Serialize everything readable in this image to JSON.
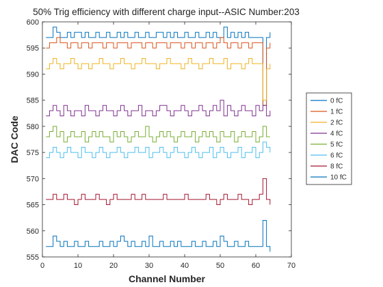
{
  "chart_data": {
    "type": "line",
    "step": true,
    "title": "50% Trig efficiency with different charge input--ASIC Number:203",
    "xlabel": "Channel Number",
    "ylabel": "DAC Code",
    "xlim": [
      0,
      70
    ],
    "ylim": [
      555,
      600
    ],
    "xticks": [
      0,
      10,
      20,
      30,
      40,
      50,
      60,
      70
    ],
    "yticks": [
      555,
      560,
      565,
      570,
      575,
      580,
      585,
      590,
      595,
      600
    ],
    "grid": false,
    "legend_position": "outside-right",
    "series": [
      {
        "name": "0 fC",
        "color": "#0072BD",
        "x": [
          1,
          2,
          3,
          4,
          5,
          6,
          7,
          8,
          9,
          10,
          11,
          12,
          13,
          14,
          15,
          16,
          17,
          18,
          19,
          20,
          21,
          22,
          23,
          24,
          25,
          26,
          27,
          28,
          29,
          30,
          31,
          32,
          33,
          34,
          35,
          36,
          37,
          38,
          39,
          40,
          41,
          42,
          43,
          44,
          45,
          46,
          47,
          48,
          49,
          50,
          51,
          52,
          53,
          54,
          55,
          56,
          57,
          58,
          59,
          60,
          61,
          62,
          63,
          64
        ],
        "y": [
          597,
          597,
          599,
          598,
          597,
          597,
          598,
          597,
          598,
          598,
          597,
          598,
          597,
          597,
          598,
          597,
          597,
          598,
          597,
          597,
          598,
          597,
          598,
          597,
          597,
          598,
          597,
          597,
          598,
          597,
          597,
          598,
          598,
          597,
          598,
          597,
          598,
          597,
          597,
          598,
          597,
          597,
          598,
          597,
          597,
          598,
          597,
          598,
          597,
          597,
          599,
          597,
          598,
          597,
          598,
          597,
          598,
          597,
          597,
          597,
          597,
          584,
          597,
          598
        ]
      },
      {
        "name": "1 fC",
        "color": "#D95319",
        "x": [
          1,
          2,
          3,
          4,
          5,
          6,
          7,
          8,
          9,
          10,
          11,
          12,
          13,
          14,
          15,
          16,
          17,
          18,
          19,
          20,
          21,
          22,
          23,
          24,
          25,
          26,
          27,
          28,
          29,
          30,
          31,
          32,
          33,
          34,
          35,
          36,
          37,
          38,
          39,
          40,
          41,
          42,
          43,
          44,
          45,
          46,
          47,
          48,
          49,
          50,
          51,
          52,
          53,
          54,
          55,
          56,
          57,
          58,
          59,
          60,
          61,
          62,
          63,
          64
        ],
        "y": [
          595,
          596,
          596,
          597,
          596,
          596,
          595,
          596,
          596,
          595,
          596,
          596,
          595,
          596,
          596,
          596,
          595,
          596,
          596,
          595,
          596,
          596,
          596,
          595,
          596,
          596,
          596,
          595,
          596,
          596,
          595,
          596,
          596,
          596,
          595,
          596,
          596,
          596,
          595,
          596,
          596,
          595,
          596,
          596,
          595,
          596,
          596,
          595,
          596,
          597,
          596,
          595,
          596,
          596,
          595,
          596,
          596,
          595,
          596,
          596,
          596,
          584,
          595,
          596
        ]
      },
      {
        "name": "2 fC",
        "color": "#EDB120",
        "x": [
          1,
          2,
          3,
          4,
          5,
          6,
          7,
          8,
          9,
          10,
          11,
          12,
          13,
          14,
          15,
          16,
          17,
          18,
          19,
          20,
          21,
          22,
          23,
          24,
          25,
          26,
          27,
          28,
          29,
          30,
          31,
          32,
          33,
          34,
          35,
          36,
          37,
          38,
          39,
          40,
          41,
          42,
          43,
          44,
          45,
          46,
          47,
          48,
          49,
          50,
          51,
          52,
          53,
          54,
          55,
          56,
          57,
          58,
          59,
          60,
          61,
          62,
          63,
          64
        ],
        "y": [
          591,
          592,
          593,
          592,
          591,
          592,
          592,
          593,
          592,
          591,
          592,
          592,
          591,
          592,
          592,
          593,
          592,
          592,
          591,
          592,
          592,
          593,
          592,
          592,
          591,
          592,
          592,
          593,
          592,
          592,
          592,
          591,
          592,
          592,
          593,
          592,
          592,
          592,
          591,
          592,
          593,
          592,
          592,
          591,
          592,
          592,
          593,
          592,
          592,
          592,
          593,
          591,
          592,
          592,
          592,
          591,
          592,
          593,
          592,
          592,
          592,
          585,
          591,
          592
        ]
      },
      {
        "name": "4 fC",
        "color": "#7E2F8E",
        "x": [
          1,
          2,
          3,
          4,
          5,
          6,
          7,
          8,
          9,
          10,
          11,
          12,
          13,
          14,
          15,
          16,
          17,
          18,
          19,
          20,
          21,
          22,
          23,
          24,
          25,
          26,
          27,
          28,
          29,
          30,
          31,
          32,
          33,
          34,
          35,
          36,
          37,
          38,
          39,
          40,
          41,
          42,
          43,
          44,
          45,
          46,
          47,
          48,
          49,
          50,
          51,
          52,
          53,
          54,
          55,
          56,
          57,
          58,
          59,
          60,
          61,
          62,
          63,
          64
        ],
        "y": [
          582,
          583,
          584,
          583,
          582,
          584,
          583,
          582,
          583,
          583,
          582,
          584,
          583,
          583,
          582,
          583,
          584,
          583,
          583,
          582,
          583,
          584,
          583,
          582,
          583,
          583,
          584,
          582,
          583,
          583,
          582,
          583,
          584,
          584,
          583,
          582,
          583,
          583,
          584,
          583,
          582,
          583,
          583,
          584,
          583,
          582,
          583,
          584,
          583,
          585,
          582,
          584,
          583,
          582,
          583,
          584,
          583,
          583,
          582,
          584,
          583,
          584,
          582,
          583
        ]
      },
      {
        "name": "5 fC",
        "color": "#77AC30",
        "x": [
          1,
          2,
          3,
          4,
          5,
          6,
          7,
          8,
          9,
          10,
          11,
          12,
          13,
          14,
          15,
          16,
          17,
          18,
          19,
          20,
          21,
          22,
          23,
          24,
          25,
          26,
          27,
          28,
          29,
          30,
          31,
          32,
          33,
          34,
          35,
          36,
          37,
          38,
          39,
          40,
          41,
          42,
          43,
          44,
          45,
          46,
          47,
          48,
          49,
          50,
          51,
          52,
          53,
          54,
          55,
          56,
          57,
          58,
          59,
          60,
          61,
          62,
          63,
          64
        ],
        "y": [
          578,
          579,
          580,
          578,
          579,
          577,
          578,
          579,
          578,
          578,
          579,
          577,
          578,
          579,
          578,
          579,
          578,
          578,
          577,
          579,
          578,
          579,
          578,
          577,
          578,
          579,
          578,
          578,
          580,
          578,
          577,
          578,
          579,
          578,
          579,
          578,
          577,
          578,
          579,
          578,
          578,
          579,
          577,
          578,
          579,
          578,
          579,
          578,
          577,
          579,
          578,
          578,
          579,
          577,
          578,
          579,
          578,
          578,
          579,
          577,
          578,
          580,
          578,
          578
        ]
      },
      {
        "name": "6 fC",
        "color": "#4DBEEE",
        "x": [
          1,
          2,
          3,
          4,
          5,
          6,
          7,
          8,
          9,
          10,
          11,
          12,
          13,
          14,
          15,
          16,
          17,
          18,
          19,
          20,
          21,
          22,
          23,
          24,
          25,
          26,
          27,
          28,
          29,
          30,
          31,
          32,
          33,
          34,
          35,
          36,
          37,
          38,
          39,
          40,
          41,
          42,
          43,
          44,
          45,
          46,
          47,
          48,
          49,
          50,
          51,
          52,
          53,
          54,
          55,
          56,
          57,
          58,
          59,
          60,
          61,
          62,
          63,
          64
        ],
        "y": [
          574,
          575,
          576,
          575,
          574,
          575,
          576,
          575,
          575,
          574,
          576,
          575,
          575,
          574,
          575,
          576,
          575,
          574,
          575,
          575,
          576,
          575,
          574,
          575,
          575,
          576,
          575,
          575,
          576,
          574,
          575,
          575,
          576,
          575,
          574,
          575,
          576,
          575,
          575,
          574,
          575,
          576,
          575,
          574,
          575,
          575,
          576,
          574,
          575,
          576,
          575,
          574,
          575,
          575,
          576,
          574,
          575,
          575,
          576,
          574,
          575,
          577,
          576,
          575
        ]
      },
      {
        "name": "8 fC",
        "color": "#A2142F",
        "x": [
          1,
          2,
          3,
          4,
          5,
          6,
          7,
          8,
          9,
          10,
          11,
          12,
          13,
          14,
          15,
          16,
          17,
          18,
          19,
          20,
          21,
          22,
          23,
          24,
          25,
          26,
          27,
          28,
          29,
          30,
          31,
          32,
          33,
          34,
          35,
          36,
          37,
          38,
          39,
          40,
          41,
          42,
          43,
          44,
          45,
          46,
          47,
          48,
          49,
          50,
          51,
          52,
          53,
          54,
          55,
          56,
          57,
          58,
          59,
          60,
          61,
          62,
          63,
          64
        ],
        "y": [
          566,
          566,
          567,
          566,
          566,
          567,
          566,
          566,
          565,
          566,
          567,
          566,
          566,
          566,
          567,
          566,
          566,
          565,
          566,
          567,
          566,
          566,
          566,
          566,
          567,
          566,
          566,
          567,
          566,
          566,
          566,
          566,
          566,
          567,
          566,
          566,
          566,
          566,
          566,
          567,
          566,
          566,
          566,
          566,
          566,
          567,
          566,
          566,
          565,
          566,
          567,
          566,
          566,
          566,
          567,
          566,
          566,
          565,
          566,
          566,
          567,
          570,
          566,
          565
        ]
      },
      {
        "name": "10 fC",
        "color": "#0072BD",
        "x": [
          1,
          2,
          3,
          4,
          5,
          6,
          7,
          8,
          9,
          10,
          11,
          12,
          13,
          14,
          15,
          16,
          17,
          18,
          19,
          20,
          21,
          22,
          23,
          24,
          25,
          26,
          27,
          28,
          29,
          30,
          31,
          32,
          33,
          34,
          35,
          36,
          37,
          38,
          39,
          40,
          41,
          42,
          43,
          44,
          45,
          46,
          47,
          48,
          49,
          50,
          51,
          52,
          53,
          54,
          55,
          56,
          57,
          58,
          59,
          60,
          61,
          62,
          63,
          64
        ],
        "y": [
          557,
          557,
          559,
          558,
          557,
          558,
          557,
          557,
          558,
          557,
          557,
          558,
          557,
          557,
          557,
          558,
          557,
          557,
          558,
          557,
          558,
          559,
          558,
          557,
          558,
          557,
          557,
          558,
          557,
          559,
          557,
          557,
          558,
          557,
          557,
          558,
          557,
          558,
          557,
          557,
          557,
          558,
          557,
          557,
          558,
          557,
          557,
          558,
          557,
          559,
          558,
          557,
          557,
          558,
          557,
          557,
          558,
          557,
          557,
          557,
          557,
          562,
          557,
          556
        ]
      }
    ]
  }
}
